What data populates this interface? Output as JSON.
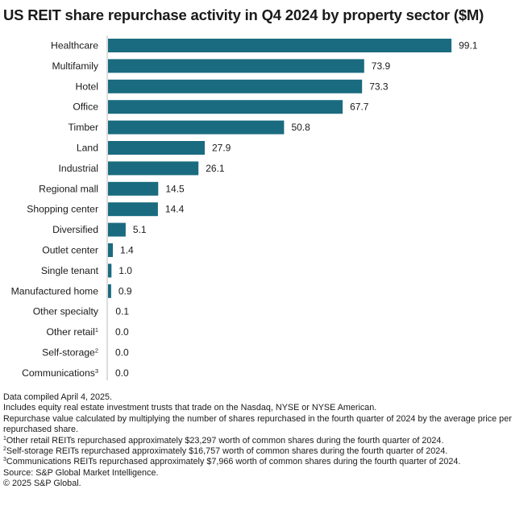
{
  "title": "US REIT share repurchase activity in Q4 2024 by property sector ($M)",
  "chart_data": {
    "type": "bar",
    "orientation": "horizontal",
    "title": "US REIT share repurchase activity in Q4 2024 by property sector ($M)",
    "categories": [
      "Healthcare",
      "Multifamily",
      "Hotel",
      "Office",
      "Timber",
      "Land",
      "Industrial",
      "Regional mall",
      "Shopping center",
      "Diversified",
      "Outlet center",
      "Single tenant",
      "Manufactured home",
      "Other specialty",
      "Other retail",
      "Self-storage",
      "Communications"
    ],
    "category_footnotes": [
      "",
      "",
      "",
      "",
      "",
      "",
      "",
      "",
      "",
      "",
      "",
      "",
      "",
      "",
      "1",
      "2",
      "3"
    ],
    "values": [
      99.1,
      73.9,
      73.3,
      67.7,
      50.8,
      27.9,
      26.1,
      14.5,
      14.4,
      5.1,
      1.4,
      1.0,
      0.9,
      0.1,
      0.0,
      0.0,
      0.0
    ],
    "value_labels": [
      "99.1",
      "73.9",
      "73.3",
      "67.7",
      "50.8",
      "27.9",
      "26.1",
      "14.5",
      "14.4",
      "5.1",
      "1.4",
      "1.0",
      "0.9",
      "0.1",
      "0.0",
      "0.0",
      "0.0"
    ],
    "xlim": [
      0,
      100
    ],
    "bar_color": "#1a6b7f",
    "grid": false,
    "legend": false,
    "xlabel": "",
    "ylabel": ""
  },
  "notes": [
    "Data compiled April 4, 2025.",
    "Includes equity real estate investment trusts that trade on the Nasdaq, NYSE or NYSE American.",
    "Repurchase value calculated by multiplying the number of shares repurchased in the fourth quarter of 2024 by the average price per repurchased share."
  ],
  "footnotes": [
    {
      "marker": "1",
      "text": "Other retail REITs repurchased approximately $23,297 worth of common shares during the fourth quarter of 2024."
    },
    {
      "marker": "2",
      "text": "Self-storage REITs repurchased approximately $16,757 worth of common shares during the fourth quarter of 2024."
    },
    {
      "marker": "3",
      "text": "Communications REITs repurchased approximately $7,966 worth of common shares during the fourth quarter of 2024."
    }
  ],
  "source": "Source: S&P Global Market Intelligence.",
  "copyright": "© 2025 S&P Global."
}
